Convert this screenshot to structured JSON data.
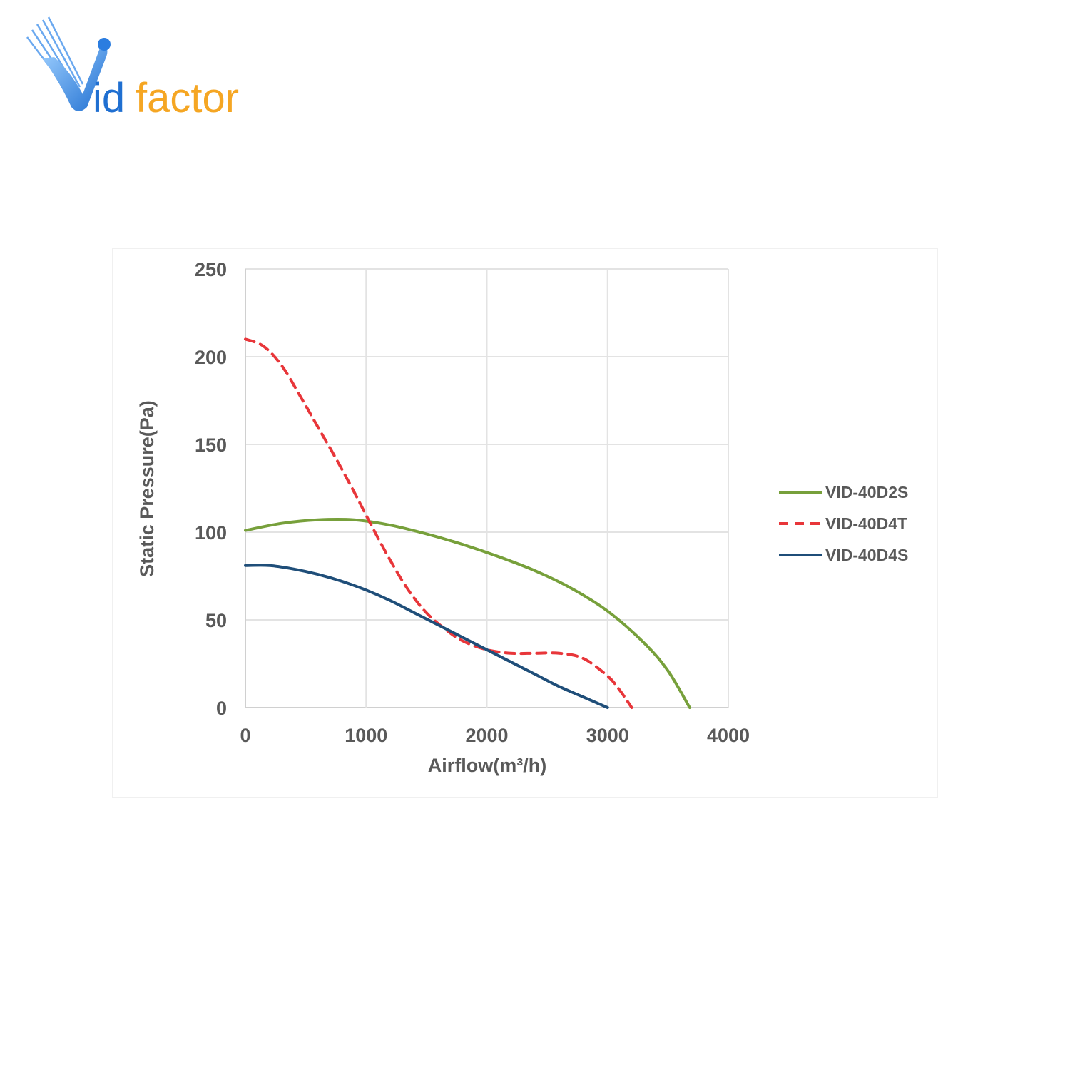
{
  "logo": {
    "text_v": "V",
    "text_id": "id",
    "text_factor": "factor",
    "colors": {
      "blue": "#1f6fd1",
      "orange": "#f5a623"
    }
  },
  "chart_data": {
    "type": "line",
    "xlabel": "Airflow(m³/h)",
    "ylabel": "Static Pressure(Pa)",
    "xlim": [
      0,
      4000
    ],
    "ylim": [
      0,
      250
    ],
    "xticks": [
      0,
      1000,
      2000,
      3000,
      4000
    ],
    "yticks": [
      0,
      50,
      100,
      150,
      200,
      250
    ],
    "grid": true,
    "legend_position": "right",
    "series": [
      {
        "name": "VID-40D2S",
        "color": "#77a03b",
        "dash": "solid",
        "x": [
          0,
          300,
          600,
          900,
          1200,
          1500,
          1800,
          2100,
          2400,
          2700,
          3000,
          3300,
          3500,
          3680
        ],
        "y": [
          101,
          105,
          107,
          107,
          104,
          99,
          93,
          86,
          78,
          68,
          55,
          37,
          21,
          0
        ]
      },
      {
        "name": "VID-40D4T",
        "color": "#e8363a",
        "dash": "dashed",
        "x": [
          0,
          150,
          300,
          450,
          600,
          750,
          900,
          1050,
          1200,
          1350,
          1500,
          1650,
          1800,
          2000,
          2200,
          2400,
          2600,
          2800,
          3000,
          3100,
          3200
        ],
        "y": [
          210,
          206,
          195,
          178,
          160,
          142,
          123,
          103,
          84,
          67,
          54,
          45,
          38,
          33,
          31,
          31,
          31,
          28,
          18,
          10,
          0
        ]
      },
      {
        "name": "VID-40D4S",
        "color": "#1f4e79",
        "dash": "solid",
        "x": [
          0,
          200,
          400,
          600,
          800,
          1000,
          1200,
          1400,
          1600,
          1800,
          2000,
          2200,
          2400,
          2600,
          2800,
          3000
        ],
        "y": [
          81,
          81,
          79,
          76,
          72,
          67,
          61,
          54,
          47,
          40,
          33,
          26,
          19,
          12,
          6,
          0
        ]
      }
    ]
  }
}
